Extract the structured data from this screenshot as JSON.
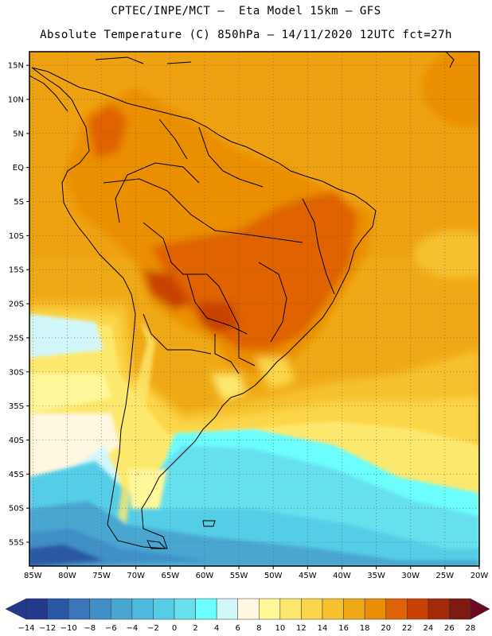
{
  "header": {
    "line1": "CPTEC/INPE/MCT –  Eta Model 15km – GFS",
    "line2": "Absolute Temperature (C) 850hPa – 14/11/2020 12UTC fct=27h"
  },
  "map": {
    "lat_labels": [
      "15N",
      "10N",
      "5N",
      "EQ",
      "5S",
      "10S",
      "15S",
      "20S",
      "25S",
      "30S",
      "35S",
      "40S",
      "45S",
      "50S",
      "55S"
    ],
    "lon_labels": [
      "85W",
      "80W",
      "75W",
      "70W",
      "65W",
      "60W",
      "55W",
      "50W",
      "45W",
      "40W",
      "35W",
      "30W",
      "25W",
      "20W"
    ],
    "lat_values": [
      15,
      10,
      5,
      0,
      -5,
      -10,
      -15,
      -20,
      -25,
      -30,
      -35,
      -40,
      -45,
      -50,
      -55
    ],
    "lon_values": [
      -85,
      -80,
      -75,
      -70,
      -65,
      -60,
      -55,
      -50,
      -45,
      -40,
      -35,
      -30,
      -25,
      -20
    ],
    "extent": {
      "lon_min": -85.5,
      "lon_max": -20,
      "lat_min": -58.5,
      "lat_max": 17
    }
  },
  "colorbar": {
    "labels": [
      "-14",
      "-12",
      "-10",
      "-8",
      "-6",
      "-4",
      "-2",
      "0",
      "2",
      "4",
      "6",
      "8",
      "10",
      "12",
      "14",
      "16",
      "18",
      "20",
      "22",
      "24",
      "26",
      "28"
    ],
    "colors": [
      "#233a8c",
      "#2a58a4",
      "#3a76b9",
      "#3f8fc6",
      "#48a6d1",
      "#4cb9dd",
      "#56cde6",
      "#66e0ee",
      "#6cfdfd",
      "#d2f7fb",
      "#fff8e1",
      "#fff79a",
      "#fde86e",
      "#fbd64a",
      "#f6c12f",
      "#f0a916",
      "#ea8f05",
      "#e06206",
      "#c84206",
      "#a52a0a",
      "#7e1a14"
    ],
    "under_color": "#233a8c",
    "over_color": "#6b0a23"
  }
}
